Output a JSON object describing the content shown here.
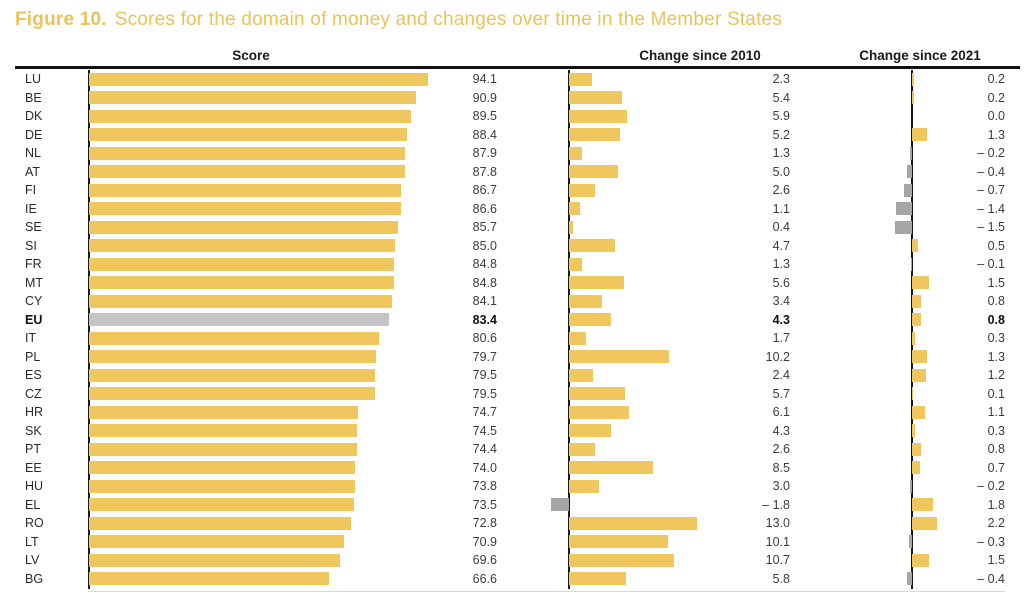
{
  "title": {
    "prefix": "Figure 10.",
    "text": "Scores for the domain of money and changes over time in the Member States"
  },
  "headers": {
    "score": "Score",
    "change_2010": "Change since 2010",
    "change_2021": "Change since 2021"
  },
  "colors": {
    "bar_yellow": "#F0C75E",
    "bar_negative_gray": "#A5A5A7",
    "bar_eu_gray": "#C4C4C7",
    "title_yellow": "#ECC258",
    "axis_black": "#1A1A1A",
    "value_text": "#3C3C3C"
  },
  "chart_data": {
    "type": "bar",
    "orientation": "horizontal",
    "title": "Figure 10. Scores for the domain of money and changes over time in the Member States",
    "categories": [
      "LU",
      "BE",
      "DK",
      "DE",
      "NL",
      "AT",
      "FI",
      "IE",
      "SE",
      "SI",
      "FR",
      "MT",
      "CY",
      "EU",
      "IT",
      "PL",
      "ES",
      "CZ",
      "HR",
      "SK",
      "PT",
      "EE",
      "HU",
      "EL",
      "RO",
      "LT",
      "LV",
      "BG"
    ],
    "series": [
      {
        "name": "Score",
        "axis_range": [
          0,
          100
        ],
        "values": [
          94.1,
          90.9,
          89.5,
          88.4,
          87.9,
          87.8,
          86.7,
          86.6,
          85.7,
          85.0,
          84.8,
          84.8,
          84.1,
          83.4,
          80.6,
          79.7,
          79.5,
          79.5,
          74.7,
          74.5,
          74.4,
          74.0,
          73.8,
          73.5,
          72.8,
          70.9,
          69.6,
          66.6
        ]
      },
      {
        "name": "Change since 2010",
        "axis_range": [
          -2,
          13.5
        ],
        "values": [
          2.3,
          5.4,
          5.9,
          5.2,
          1.3,
          5.0,
          2.6,
          1.1,
          0.4,
          4.7,
          1.3,
          5.6,
          3.4,
          4.3,
          1.7,
          10.2,
          2.4,
          5.7,
          6.1,
          4.3,
          2.6,
          8.5,
          3.0,
          -1.8,
          13.0,
          10.1,
          10.7,
          5.8
        ]
      },
      {
        "name": "Change since 2021",
        "axis_range": [
          -1.6,
          2.3
        ],
        "values": [
          0.2,
          0.2,
          0.0,
          1.3,
          -0.2,
          -0.4,
          -0.7,
          -1.4,
          -1.5,
          0.5,
          -0.1,
          1.5,
          0.8,
          0.8,
          0.3,
          1.3,
          1.2,
          0.1,
          1.1,
          0.3,
          0.8,
          0.7,
          -0.2,
          1.8,
          2.2,
          -0.3,
          1.5,
          -0.4
        ]
      }
    ],
    "highlight_category": "EU",
    "style_notes": "EU row bold with gray score bar; negative change bars gray, drawn left of axis; positive bars yellow, right of axis",
    "grid": false,
    "legend": false
  }
}
